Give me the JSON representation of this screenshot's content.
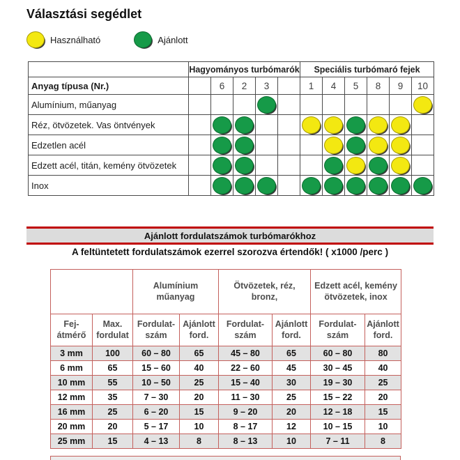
{
  "title": "Választási segédlet",
  "legend": {
    "usable": "Használható",
    "recommended": "Ajánlott"
  },
  "matrix": {
    "row_header": "Anyag típusa (Nr.)",
    "groups": [
      {
        "label": "Hagyományos turbómarók",
        "span": 5
      },
      {
        "label": "Speciális turbómaró fejek",
        "span": 6
      }
    ],
    "columns": [
      "",
      "6",
      "2",
      "3",
      "",
      "1",
      "4",
      "5",
      "8",
      "9",
      "10"
    ],
    "cell_legend": {
      "G": "Ajánlott",
      "Y": "Használható"
    },
    "rows": [
      {
        "label": "Alumínium, műanyag",
        "cells": [
          "",
          "",
          "",
          "G",
          "",
          "",
          "",
          "",
          "",
          "",
          "Y"
        ]
      },
      {
        "label": "Réz, ötvözetek. Vas öntvények",
        "cells": [
          "",
          "G",
          "G",
          "",
          "",
          "Y",
          "Y",
          "G",
          "Y",
          "Y",
          ""
        ]
      },
      {
        "label": "Edzetlen acél",
        "cells": [
          "",
          "G",
          "G",
          "",
          "",
          "",
          "Y",
          "G",
          "Y",
          "Y",
          ""
        ]
      },
      {
        "label": "Edzett acél, titán, kemény ötvözetek",
        "cells": [
          "",
          "G",
          "G",
          "",
          "",
          "",
          "G",
          "Y",
          "G",
          "Y",
          ""
        ]
      },
      {
        "label": "Inox",
        "cells": [
          "",
          "G",
          "G",
          "G",
          "",
          "G",
          "G",
          "G",
          "G",
          "G",
          "G"
        ]
      }
    ]
  },
  "banner": {
    "title": "Ajánlott fordulatszámok turbómarókhoz",
    "subtitle": "A feltüntetett fordulatszámok ezerrel szorozva értendők! ( x1000 /perc )"
  },
  "speed_table": {
    "groups": [
      {
        "label": "",
        "span": 2
      },
      {
        "label": "Alumínium műanyag",
        "span": 2
      },
      {
        "label": "Ötvözetek, réz, bronz,",
        "span": 2
      },
      {
        "label": "Edzett acél, kemény ötvözetek, inox",
        "span": 2
      }
    ],
    "columns": [
      "Fej-átmérő",
      "Max. fordulat",
      "Fordulat-szám",
      "Ajánlott ford.",
      "Fordulat-szám",
      "Ajánlott ford.",
      "Fordulat-szám",
      "Ajánlott ford."
    ],
    "rows": [
      [
        "3 mm",
        "100",
        "60 – 80",
        "65",
        "45 – 80",
        "65",
        "60 – 80",
        "80"
      ],
      [
        "6 mm",
        "65",
        "15 – 60",
        "40",
        "22 – 60",
        "45",
        "30 – 45",
        "40"
      ],
      [
        "10 mm",
        "55",
        "10 – 50",
        "25",
        "15 – 40",
        "30",
        "19 – 30",
        "25"
      ],
      [
        "12 mm",
        "35",
        "7 – 30",
        "20",
        "11 – 30",
        "25",
        "15 – 22",
        "20"
      ],
      [
        "16 mm",
        "25",
        "6 – 20",
        "15",
        "9 – 20",
        "20",
        "12 – 18",
        "15"
      ],
      [
        "20 mm",
        "20",
        "5 – 17",
        "10",
        "8 – 17",
        "12",
        "10 – 15",
        "10"
      ],
      [
        "25 mm",
        "15",
        "4 – 13",
        "8",
        "8 – 13",
        "10",
        "7 – 11",
        "8"
      ]
    ]
  },
  "colors": {
    "usable_yellow": "#F3E811",
    "recommended_green": "#169A48",
    "banner_red": "#C00000",
    "speed_table_border_red": "#C4605C",
    "row_stripe_gray": "#E2E2E2"
  }
}
